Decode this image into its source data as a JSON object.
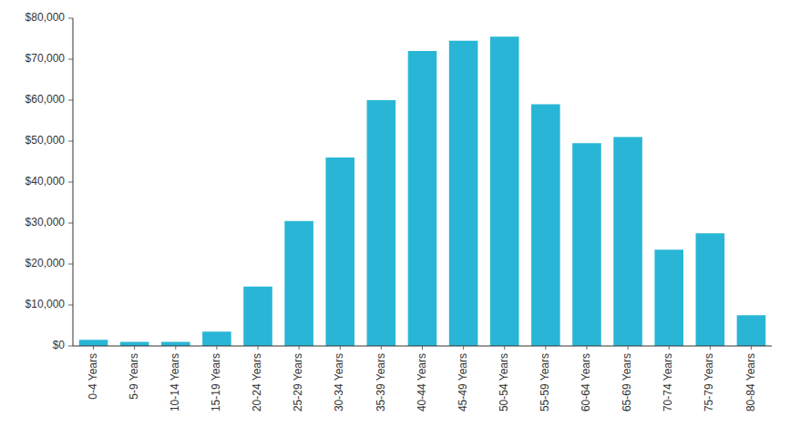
{
  "chart_data": {
    "type": "bar",
    "categories": [
      "0-4 Years",
      "5-9 Years",
      "10-14 Years",
      "15-19 Years",
      "20-24 Years",
      "25-29 Years",
      "30-34 Years",
      "35-39 Years",
      "40-44 Years",
      "45-49 Years",
      "50-54 Years",
      "55-59 Years",
      "60-64 Years",
      "65-69 Years",
      "70-74 Years",
      "75-79 Years",
      "80-84 Years"
    ],
    "values": [
      1500,
      1000,
      1000,
      3500,
      14500,
      30500,
      46000,
      60000,
      72000,
      74500,
      75500,
      59000,
      49500,
      51000,
      23500,
      27500,
      7500
    ],
    "color": "#29B6D6",
    "ylim": [
      0,
      80000
    ],
    "yticks": [
      {
        "value": 0,
        "label": "$0"
      },
      {
        "value": 10000,
        "label": "$10,000"
      },
      {
        "value": 20000,
        "label": "$20,000"
      },
      {
        "value": 30000,
        "label": "$30,000"
      },
      {
        "value": 40000,
        "label": "$40,000"
      },
      {
        "value": 50000,
        "label": "$50,000"
      },
      {
        "value": 60000,
        "label": "$60,000"
      },
      {
        "value": 70000,
        "label": "$70,000"
      },
      {
        "value": 80000,
        "label": "$80,000"
      }
    ],
    "grid": false
  }
}
